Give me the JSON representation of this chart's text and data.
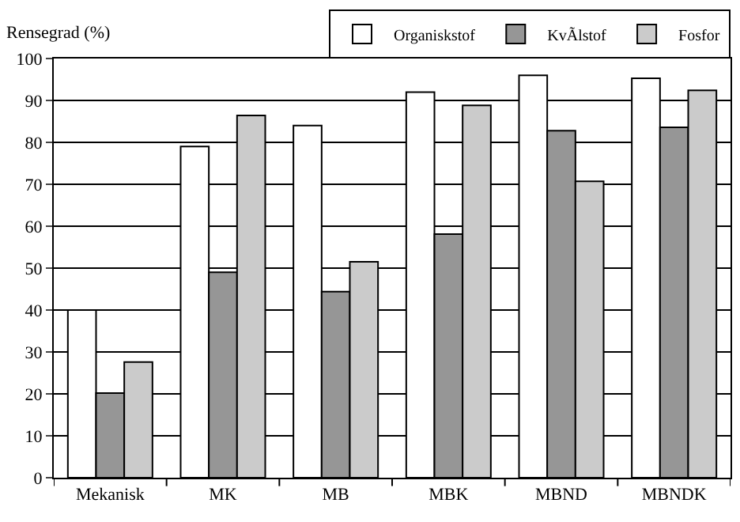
{
  "chart_data": {
    "type": "bar",
    "ylabel": "Rensegrad (%)",
    "categories": [
      "Mekanisk",
      "MK",
      "MB",
      "MBK",
      "MBND",
      "MBNDK"
    ],
    "series": [
      {
        "name": "Organiskstof",
        "color": "#ffffff",
        "values": [
          40,
          79,
          84,
          92,
          96,
          95.3
        ]
      },
      {
        "name": "KvÃlstof",
        "color": "#969696",
        "values": [
          20.2,
          49,
          44.4,
          58.1,
          82.8,
          83.6
        ]
      },
      {
        "name": "Fosfor",
        "color": "#cbcbcb",
        "values": [
          27.6,
          86.4,
          51.5,
          88.8,
          70.7,
          92.4
        ]
      }
    ],
    "ylim": [
      0,
      100
    ],
    "yticks": [
      0,
      10,
      20,
      30,
      40,
      50,
      60,
      70,
      80,
      90,
      100
    ],
    "grid": "y",
    "legend": "top"
  }
}
